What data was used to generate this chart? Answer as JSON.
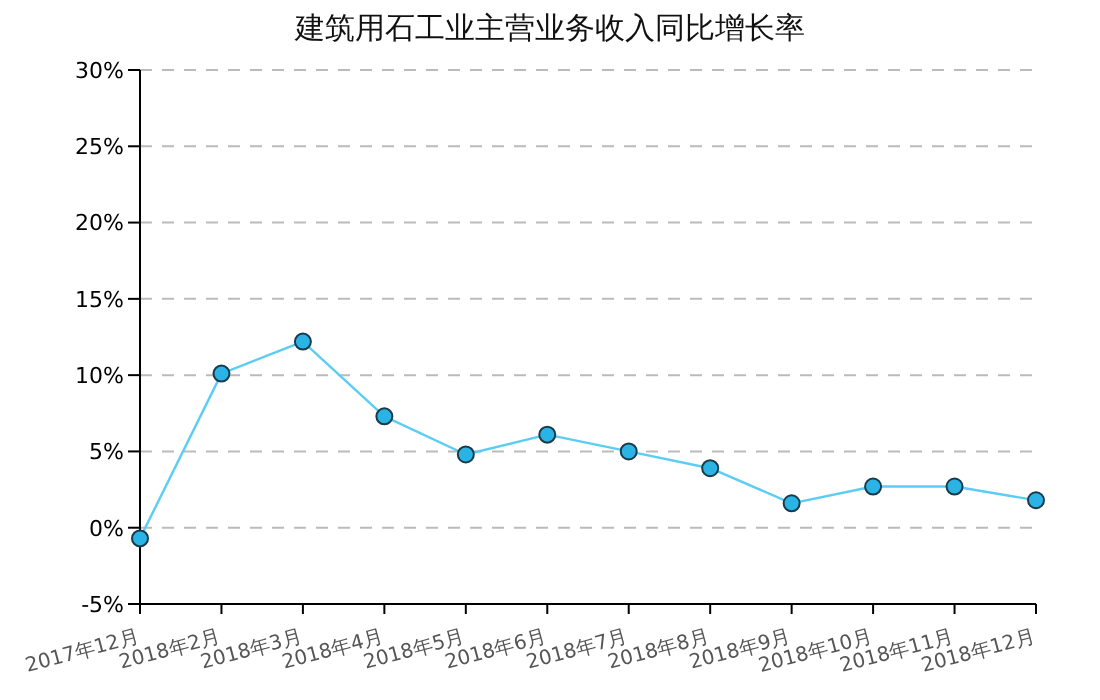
{
  "chart_data": {
    "type": "line",
    "title": "建筑用石工业主营业务收入同比增长率",
    "categories": [
      "2017年12月",
      "2018年2月",
      "2018年3月",
      "2018年4月",
      "2018年5月",
      "2018年6月",
      "2018年7月",
      "2018年8月",
      "2018年9月",
      "2018年10月",
      "2018年11月",
      "2018年12月"
    ],
    "series": [
      {
        "color": "#5bcdf5",
        "values": [
          -0.7,
          10.1,
          12.2,
          7.3,
          4.8,
          6.1,
          5.0,
          3.9,
          1.6,
          2.7,
          2.7,
          1.8
        ]
      }
    ],
    "ylim": [
      -5,
      30
    ],
    "yticks": [
      {
        "value": -5,
        "label": "-5%"
      },
      {
        "value": 0,
        "label": "0%"
      },
      {
        "value": 5,
        "label": "5%"
      },
      {
        "value": 10,
        "label": "10%"
      },
      {
        "value": 15,
        "label": "15%"
      },
      {
        "value": 20,
        "label": "20%"
      },
      {
        "value": 25,
        "label": "25%"
      },
      {
        "value": 30,
        "label": "30%"
      }
    ],
    "grid": "y",
    "marker": "circle",
    "legend": false
  }
}
